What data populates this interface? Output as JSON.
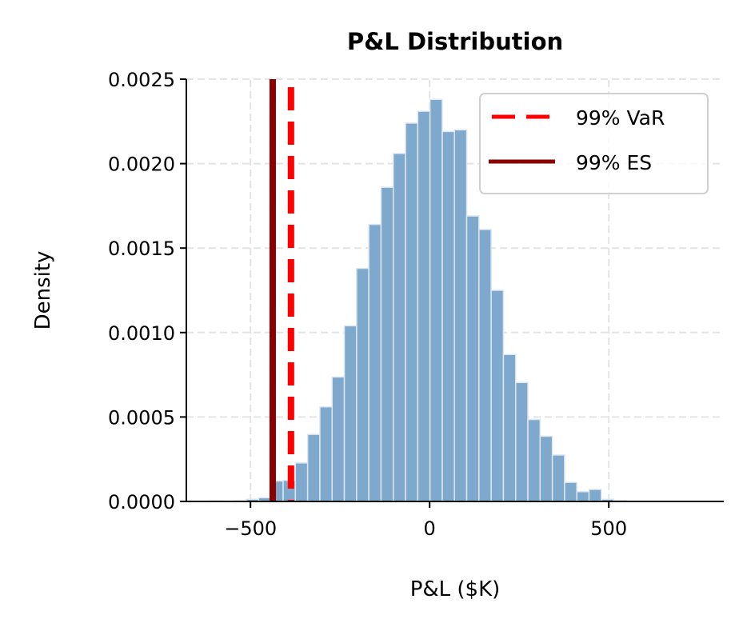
{
  "chart_data": {
    "type": "bar",
    "title": "P&L Distribution",
    "xlabel": "P&L ($K)",
    "ylabel": "Density",
    "xlim": [
      -679,
      821
    ],
    "ylim": [
      0,
      0.0025
    ],
    "grid": true,
    "legend_placement": "upper right",
    "x_ticks": [
      -500,
      0,
      500
    ],
    "x_tick_labels": [
      "−500",
      "0",
      "500"
    ],
    "y_ticks": [
      0,
      0.0005,
      0.001,
      0.0015,
      0.002,
      0.0025
    ],
    "y_tick_labels": [
      "0.0000",
      "0.0005",
      "0.0010",
      "0.0015",
      "0.0020",
      "0.0025"
    ],
    "histogram": {
      "bin_start": -613.7,
      "bin_width": 34.15,
      "values": [
        3e-06,
        0,
        3e-06,
        1.3e-05,
        2.2e-05,
        0.000121,
        0.000125,
        0.000228,
        0.000397,
        0.00056,
        0.000737,
        0.00104,
        0.00138,
        0.00164,
        0.00186,
        0.00206,
        0.00224,
        0.00231,
        0.00238,
        0.00219,
        0.0022,
        0.00169,
        0.00161,
        0.00125,
        0.00087,
        0.000704,
        0.000485,
        0.000386,
        0.000275,
        0.000113,
        5.8e-05,
        7.1e-05,
        1.3e-05,
        5e-06
      ],
      "color": "#7ea8cc",
      "edge_color": "#dde7f2"
    },
    "lines": [
      {
        "name": "99% VaR",
        "x": -387,
        "color": "#ff0000",
        "style": "dashed"
      },
      {
        "name": "99% ES",
        "x": -438,
        "color": "#8b0000",
        "style": "solid"
      }
    ]
  }
}
